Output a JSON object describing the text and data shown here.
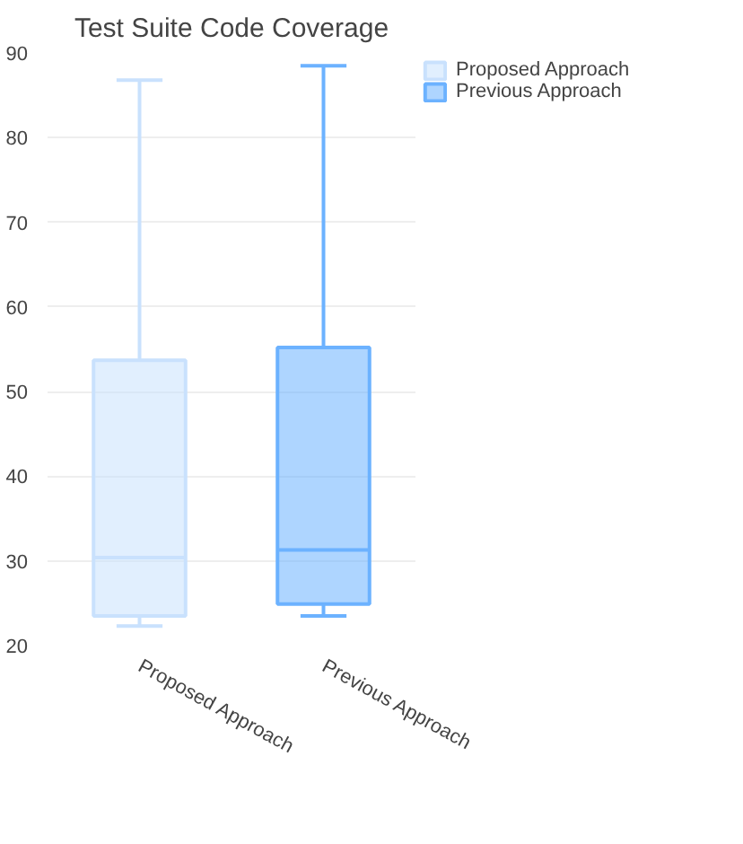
{
  "chart_data": {
    "type": "box",
    "title": "Test Suite Code Coverage",
    "categories": [
      "Proposed Approach",
      "Previous Approach"
    ],
    "series": [
      {
        "name": "Proposed Approach",
        "color": "#c9e1fd",
        "boxes": [
          {
            "low": 22.3,
            "q1": 23.5,
            "median": 30.4,
            "q3": 53.7,
            "high": 86.8
          },
          null
        ]
      },
      {
        "name": "Previous Approach",
        "color": "#6cb2ff",
        "boxes": [
          null,
          {
            "low": 23.5,
            "q1": 24.9,
            "median": 31.3,
            "q3": 55.2,
            "high": 88.5
          }
        ]
      }
    ],
    "ylim": [
      20,
      90
    ],
    "yticks": [
      20,
      30,
      40,
      50,
      60,
      70,
      80,
      90
    ],
    "grid": "y",
    "legend": "top right"
  }
}
